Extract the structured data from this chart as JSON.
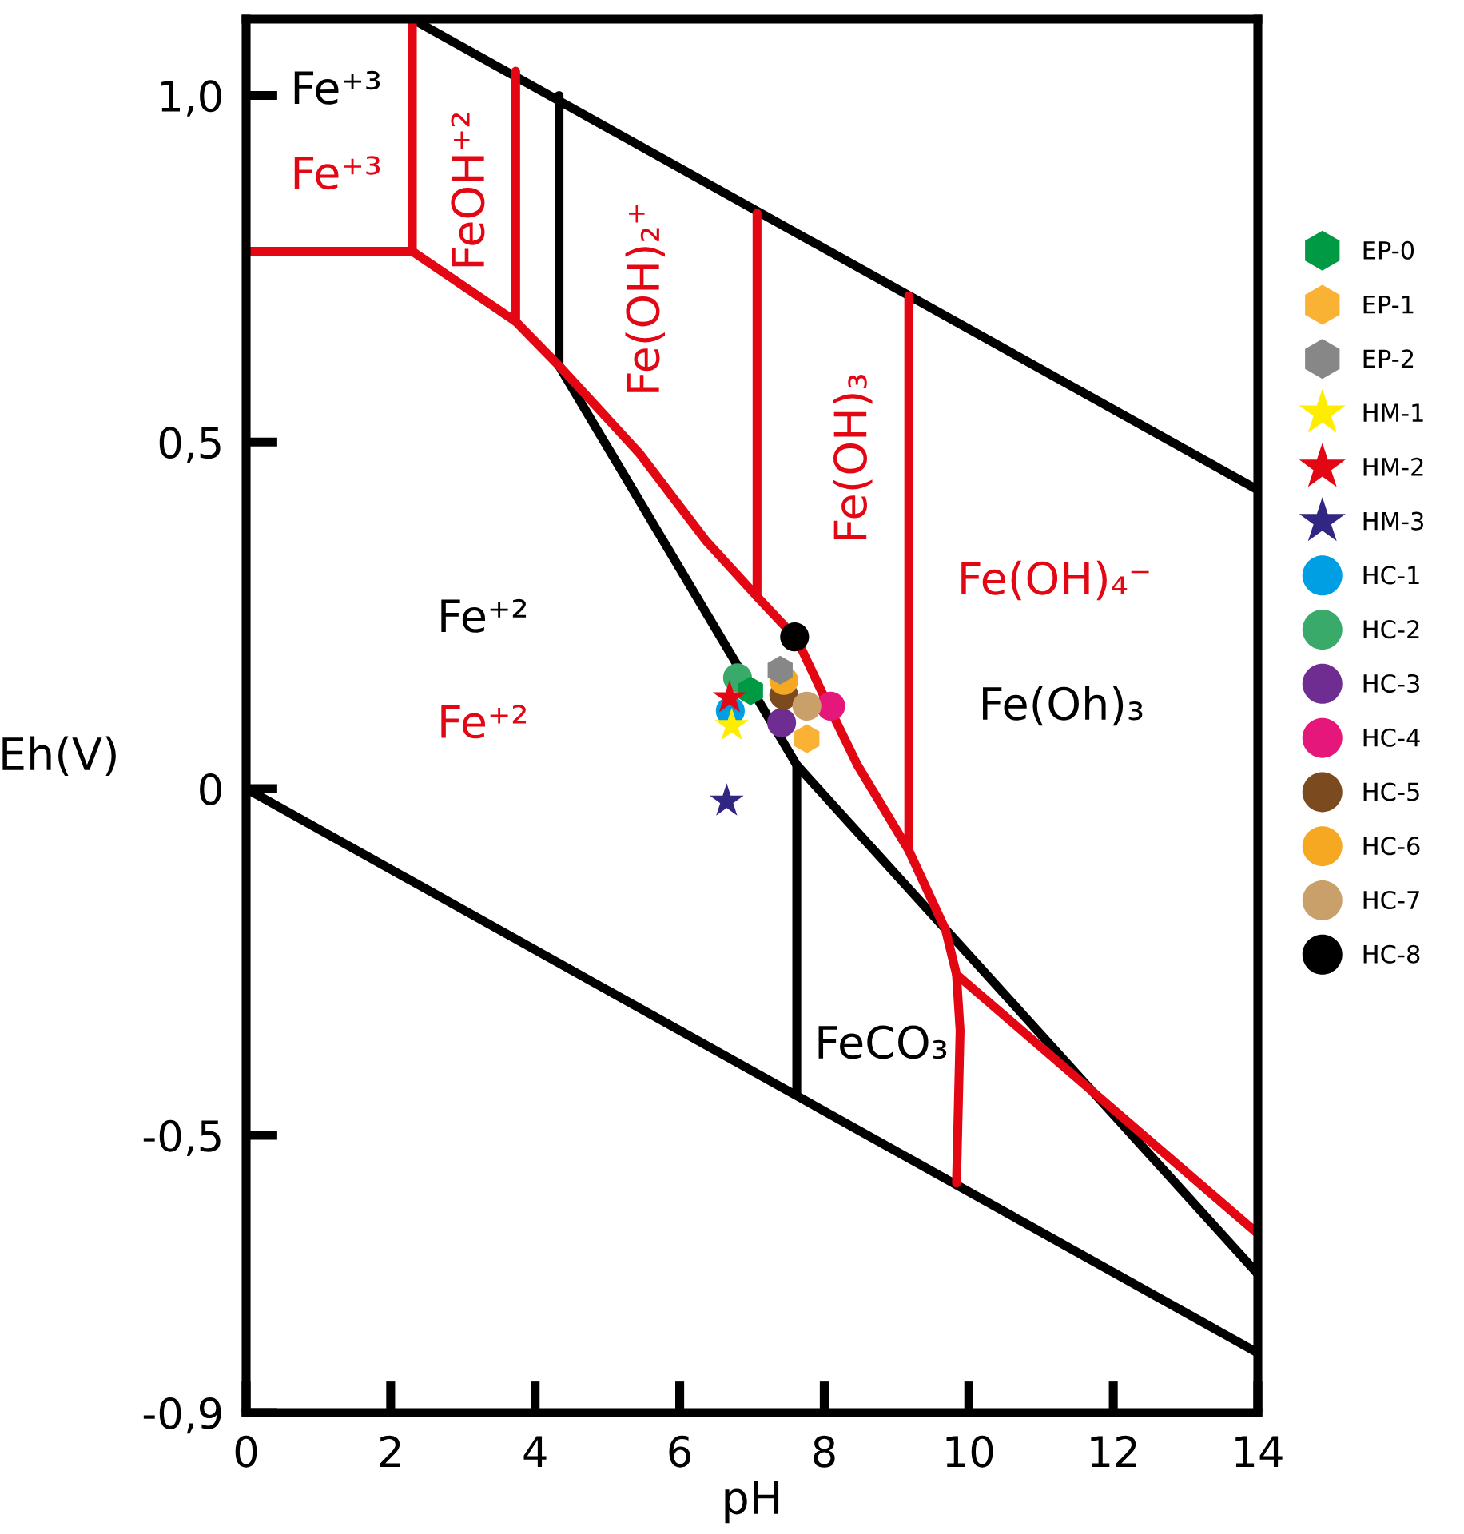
{
  "chart_data": {
    "type": "scatter",
    "xlabel": "pH",
    "ylabel": "Eh(V)",
    "xlim": [
      0,
      14
    ],
    "ylim": [
      -0.9,
      1.11
    ],
    "xticks": [
      0,
      2,
      4,
      6,
      8,
      10,
      12,
      14
    ],
    "yticks": [
      {
        "value": -0.9,
        "label": "-0,9"
      },
      {
        "value": -0.5,
        "label": "-0,5"
      },
      0,
      {
        "value": 0.5,
        "label": "0,5"
      },
      {
        "value": 1.0,
        "label": "1,0"
      }
    ],
    "grid": false,
    "legend": "right",
    "line_style": "solid",
    "series": [
      {
        "type": "line",
        "color": "#000000",
        "x": [
          2.3,
          14
        ],
        "values": [
          1.11,
          0.431
        ]
      },
      {
        "type": "line",
        "color": "#000000",
        "x": [
          0,
          14
        ],
        "values": [
          0,
          -0.814
        ]
      },
      {
        "type": "line",
        "color": "#000000",
        "x": [
          4.33,
          4.33
        ],
        "values": [
          1.0,
          0.61
        ]
      },
      {
        "type": "line",
        "color": "#000000",
        "x": [
          4.33,
          7.62,
          14
        ],
        "values": [
          0.61,
          0.034,
          -0.7
        ]
      },
      {
        "type": "line",
        "color": "#000000",
        "x": [
          7.62,
          7.62
        ],
        "values": [
          0.034,
          -0.44
        ]
      },
      {
        "type": "line",
        "color": "#e30613",
        "x": [
          0,
          2.3,
          2.3
        ],
        "values": [
          0.775,
          0.775,
          1.11
        ]
      },
      {
        "type": "line",
        "color": "#e30613",
        "x": [
          3.73,
          3.73
        ],
        "values": [
          1.035,
          0.674
        ]
      },
      {
        "type": "line",
        "color": "#e30613",
        "x": [
          7.07,
          7.07
        ],
        "values": [
          0.83,
          0.277
        ]
      },
      {
        "type": "line",
        "color": "#e30613",
        "x": [
          9.17,
          9.17
        ],
        "values": [
          0.711,
          -0.085
        ]
      },
      {
        "type": "line",
        "color": "#e30613",
        "x": [
          2.3,
          3.73,
          4.33,
          5.44,
          6.36,
          7.07,
          7.62,
          8.02,
          8.46,
          9.17,
          9.68,
          9.83,
          9.88,
          9.83
        ],
        "values": [
          0.775,
          0.674,
          0.61,
          0.484,
          0.358,
          0.277,
          0.216,
          0.128,
          0.034,
          -0.089,
          -0.204,
          -0.268,
          -0.349,
          -0.569
        ]
      },
      {
        "type": "line",
        "color": "#e30613",
        "x": [
          9.83,
          14
        ],
        "values": [
          -0.268,
          -0.642
        ]
      },
      {
        "name": "EP-0",
        "color": "#009a44",
        "x": [
          6.98
        ],
        "values": [
          0.141
        ]
      },
      {
        "name": "EP-1",
        "color": "#f9b233",
        "x": [
          7.76
        ],
        "values": [
          0.072
        ]
      },
      {
        "name": "EP-2",
        "color": "#878787",
        "x": [
          7.39
        ],
        "values": [
          0.171
        ]
      },
      {
        "name": "HM-1",
        "color": "#ffed00",
        "marker": "star",
        "x": [
          6.72
        ],
        "values": [
          0.091
        ]
      },
      {
        "name": "HM-2",
        "color": "#e30613",
        "marker": "star",
        "x": [
          6.69
        ],
        "values": [
          0.131
        ]
      },
      {
        "name": "HM-3",
        "color": "#312783",
        "marker": "star",
        "x": [
          6.65
        ],
        "values": [
          -0.018
        ]
      },
      {
        "name": "HC-1",
        "color": "#009fe3",
        "marker": "circle",
        "x": [
          6.7
        ],
        "values": [
          0.112
        ]
      },
      {
        "name": "HC-2",
        "color": "#3aaa6a",
        "marker": "circle",
        "x": [
          6.8
        ],
        "values": [
          0.16
        ]
      },
      {
        "name": "HC-3",
        "color": "#6f2c91",
        "marker": "circle",
        "x": [
          7.41
        ],
        "values": [
          0.095
        ]
      },
      {
        "name": "HC-4",
        "color": "#e6177a",
        "marker": "circle",
        "x": [
          8.09
        ],
        "values": [
          0.119
        ]
      },
      {
        "name": "HC-5",
        "color": "#7b4a1e",
        "marker": "circle",
        "x": [
          7.44
        ],
        "values": [
          0.135
        ]
      },
      {
        "name": "HC-6",
        "color": "#f7a823",
        "marker": "circle",
        "x": [
          7.44
        ],
        "values": [
          0.156
        ]
      },
      {
        "name": "HC-7",
        "color": "#c9a06a",
        "marker": "circle",
        "x": [
          7.76
        ],
        "values": [
          0.119
        ]
      },
      {
        "name": "HC-8",
        "color": "#000000",
        "marker": "circle",
        "x": [
          7.59
        ],
        "values": [
          0.219
        ]
      }
    ],
    "annotations": [
      "Fe⁺³",
      "Fe⁺³",
      "FeOH⁺²",
      "Fe(OH)₂⁺",
      "Fe(OH)₃",
      "Fe(OH)₄⁻",
      "Fe⁺²",
      "Fe⁺²",
      "Fe(Oh)₃",
      "FeCO₃"
    ]
  }
}
